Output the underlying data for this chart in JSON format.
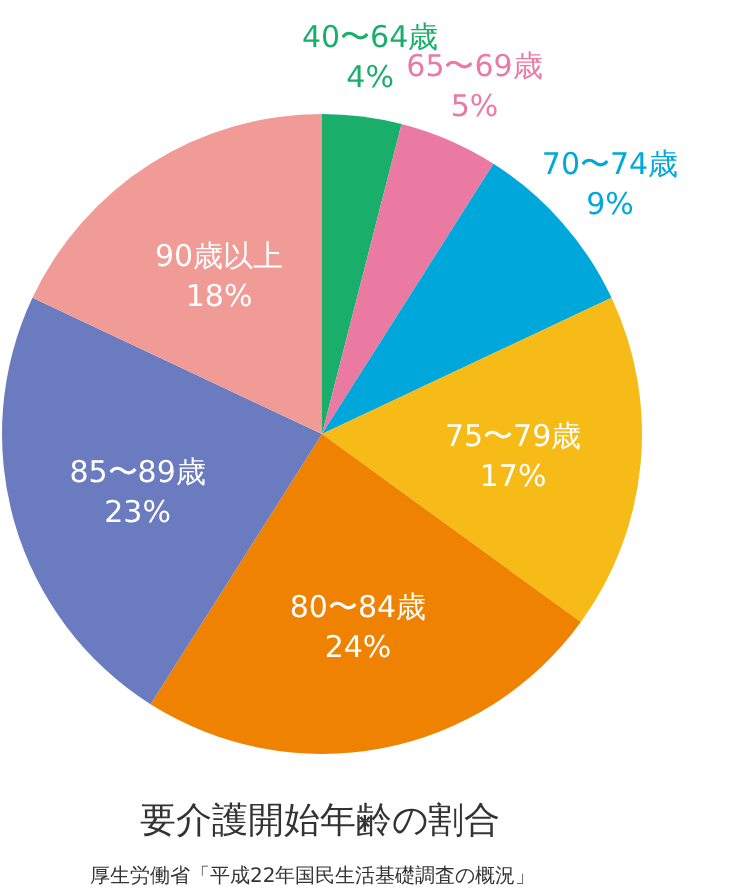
{
  "chart_data": {
    "type": "pie",
    "title": "要介護開始年齢の割合",
    "annotations": [
      "厚生労働省「平成22年国民生活基礎調査の概況」"
    ],
    "categories": [
      "40〜64歳",
      "65〜69歳",
      "70〜74歳",
      "75〜79歳",
      "80〜84歳",
      "85〜89歳",
      "90歳以上"
    ],
    "values": [
      4,
      5,
      9,
      17,
      24,
      23,
      18
    ],
    "colors": [
      "#1aae6b",
      "#ea7aa2",
      "#00a7db",
      "#f6bb16",
      "#ef8200",
      "#6a7bbf",
      "#f09b95"
    ],
    "value_labels": [
      "4%",
      "5%",
      "9%",
      "17%",
      "24%",
      "23%",
      "18%"
    ]
  }
}
